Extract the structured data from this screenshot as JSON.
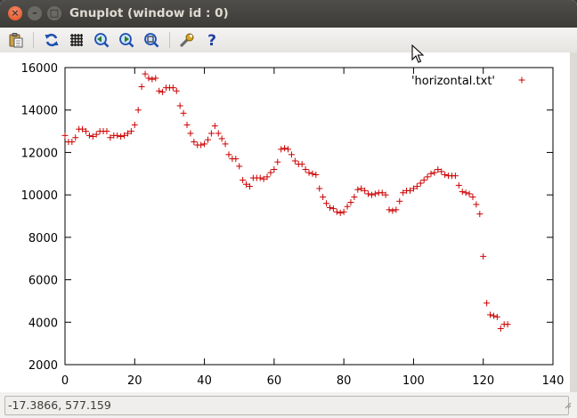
{
  "window": {
    "title": "Gnuplot (window id : 0)",
    "close_glyph": "×",
    "minimize_glyph": "–",
    "maximize_glyph": "□"
  },
  "toolbar": {
    "buttons": [
      {
        "name": "copy-clipboard",
        "icon": "clipboard-icon"
      },
      {
        "name": "replot",
        "icon": "refresh-icon"
      },
      {
        "name": "toggle-grid",
        "icon": "grid-icon"
      },
      {
        "name": "zoom-previous",
        "icon": "zoom-previous-icon"
      },
      {
        "name": "zoom-next",
        "icon": "zoom-next-icon"
      },
      {
        "name": "autoscale",
        "icon": "zoom-autoscale-icon"
      },
      {
        "name": "preferences",
        "icon": "wrench-icon"
      },
      {
        "name": "help",
        "icon": "help-icon"
      }
    ]
  },
  "status": {
    "coordinates": "-17.3866, 577.159"
  },
  "chart_data": {
    "type": "scatter",
    "title": "",
    "xlabel": "",
    "ylabel": "",
    "xlim": [
      0,
      140
    ],
    "ylim": [
      2000,
      16000
    ],
    "xticks": [
      0,
      20,
      40,
      60,
      80,
      100,
      120,
      140
    ],
    "yticks": [
      2000,
      4000,
      6000,
      8000,
      10000,
      12000,
      14000,
      16000
    ],
    "grid": false,
    "legend_position": "top-right",
    "marker": "+",
    "color": "#cc0000",
    "series": [
      {
        "name": "'horizontal.txt'",
        "x": [
          0,
          1,
          2,
          3,
          4,
          5,
          6,
          7,
          8,
          9,
          10,
          11,
          12,
          13,
          14,
          15,
          16,
          17,
          18,
          19,
          20,
          21,
          22,
          23,
          24,
          25,
          26,
          27,
          28,
          29,
          30,
          31,
          32,
          33,
          34,
          35,
          36,
          37,
          38,
          39,
          40,
          41,
          42,
          43,
          44,
          45,
          46,
          47,
          48,
          49,
          50,
          51,
          52,
          53,
          54,
          55,
          56,
          57,
          58,
          59,
          60,
          61,
          62,
          63,
          64,
          65,
          66,
          67,
          68,
          69,
          70,
          71,
          72,
          73,
          74,
          75,
          76,
          77,
          78,
          79,
          80,
          81,
          82,
          83,
          84,
          85,
          86,
          87,
          88,
          89,
          90,
          91,
          92,
          93,
          94,
          95,
          96,
          97,
          98,
          99,
          100,
          101,
          102,
          103,
          104,
          105,
          106,
          107,
          108,
          109,
          110,
          111,
          112,
          113,
          114,
          115,
          116,
          117,
          118,
          119,
          120,
          121,
          122,
          123,
          124,
          125,
          126,
          127
        ],
        "y": [
          12800,
          12500,
          12500,
          12700,
          13100,
          13100,
          13000,
          12800,
          12750,
          12850,
          13000,
          13000,
          13000,
          12700,
          12800,
          12800,
          12750,
          12800,
          12900,
          13000,
          13300,
          14000,
          15100,
          15700,
          15500,
          15450,
          15500,
          14900,
          14850,
          15050,
          15050,
          15050,
          14900,
          14200,
          13850,
          13300,
          12900,
          12500,
          12350,
          12350,
          12400,
          12600,
          12900,
          13250,
          12900,
          12650,
          12400,
          11900,
          11700,
          11700,
          11350,
          10700,
          10500,
          10400,
          10800,
          10800,
          10800,
          10750,
          10850,
          11050,
          11200,
          11550,
          12150,
          12200,
          12150,
          11900,
          11600,
          11450,
          11450,
          11200,
          11050,
          11000,
          10950,
          10300,
          9900,
          9600,
          9400,
          9350,
          9200,
          9150,
          9200,
          9450,
          9650,
          9900,
          10250,
          10300,
          10200,
          10050,
          10000,
          10050,
          10100,
          10100,
          10000,
          9300,
          9250,
          9300,
          9700,
          10100,
          10200,
          10200,
          10300,
          10400,
          10550,
          10700,
          10850,
          11000,
          11050,
          11200,
          11100,
          10950,
          10900,
          10900,
          10900,
          10450,
          10150,
          10100,
          10050,
          9900,
          9550,
          9100,
          7100,
          4900,
          4350,
          4300,
          4250,
          3700,
          3900,
          3900
        ]
      }
    ]
  }
}
